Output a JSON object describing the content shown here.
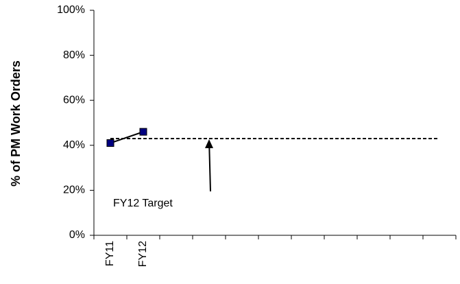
{
  "chart_data": {
    "type": "line",
    "y_axis_label": "% of PM Work Orders",
    "categories": [
      "FY11",
      "FY12",
      null,
      null,
      null,
      null,
      null,
      null,
      null,
      null,
      null
    ],
    "values": [
      41,
      46,
      null,
      null,
      null,
      null,
      null,
      null,
      null,
      null,
      null
    ],
    "color": "#000000",
    "marker_color": "#000080",
    "target": 43,
    "annotation": "FY12 Target",
    "ylim": [
      0,
      100
    ],
    "yticks": [
      {
        "value": 0,
        "label": "0%"
      },
      {
        "value": 20,
        "label": "20%"
      },
      {
        "value": 40,
        "label": "40%"
      },
      {
        "value": 60,
        "label": "60%"
      },
      {
        "value": 80,
        "label": "80%"
      },
      {
        "value": 100,
        "label": "100%"
      }
    ],
    "grid": false
  }
}
